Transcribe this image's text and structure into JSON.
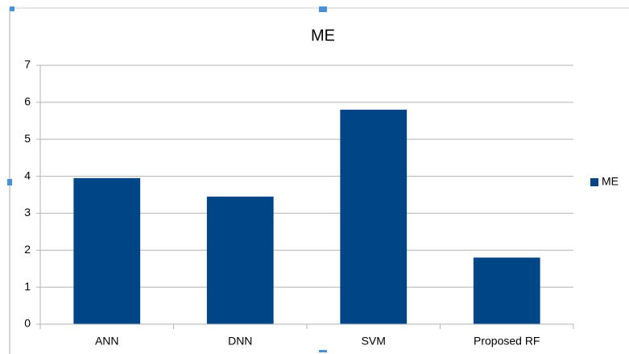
{
  "chart_data": {
    "type": "bar",
    "title": "ME",
    "categories": [
      "ANN",
      "DNN",
      "SVM",
      "Proposed RF"
    ],
    "series": [
      {
        "name": "ME",
        "color": "#004586",
        "values": [
          3.95,
          3.45,
          5.8,
          1.8
        ]
      }
    ],
    "ylim": [
      0,
      7
    ],
    "yticks": [
      0,
      1,
      2,
      3,
      4,
      5,
      6,
      7
    ],
    "grid": true,
    "legend": "right"
  }
}
